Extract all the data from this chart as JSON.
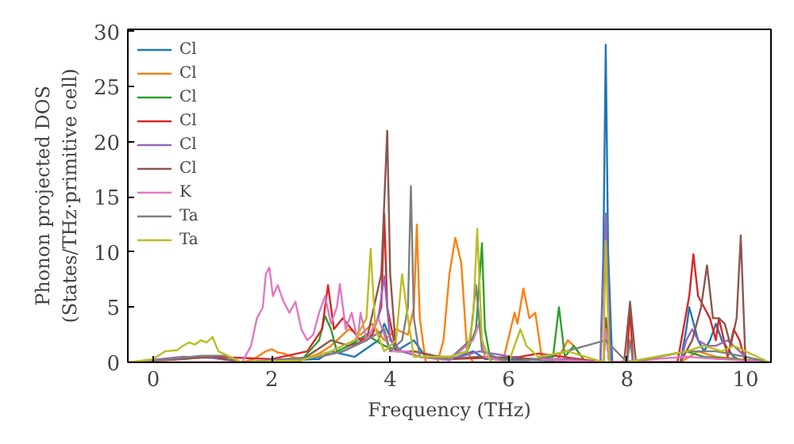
{
  "chart_data": {
    "type": "line",
    "xlabel": "Frequency (THz)",
    "ylabel": "Phonon projected DOS\n(States/THz·primitive cell)",
    "xlim": [
      -0.43,
      10.43
    ],
    "ylim": [
      0,
      30.2
    ],
    "xticks": [
      0,
      2,
      4,
      6,
      8,
      10
    ],
    "yticks": [
      0,
      5,
      10,
      15,
      20,
      25,
      30
    ],
    "grid": false,
    "legend": "top left",
    "marker": "none",
    "line_style": "solid",
    "series": [
      {
        "name": "Cl",
        "color": "#1f77b4",
        "x": [
          1.5,
          2.8,
          3.0,
          3.4,
          3.8,
          3.9,
          4.1,
          4.4,
          4.6,
          5.0,
          5.4,
          5.6,
          6.5,
          7.55,
          7.6,
          7.64,
          7.68,
          7.75,
          8.0,
          8.9,
          9.0,
          9.05,
          9.2,
          9.3,
          9.4,
          9.5,
          9.6,
          9.8,
          10.0,
          10.4
        ],
        "values": [
          0,
          0.3,
          1,
          0.5,
          2,
          3.5,
          1,
          2,
          0.5,
          0.2,
          1,
          0.3,
          0.2,
          0,
          10,
          28.8,
          10,
          0,
          0,
          0,
          3,
          5,
          2,
          1,
          2,
          3.5,
          2,
          0.5,
          0,
          0
        ]
      },
      {
        "name": "Cl",
        "color": "#ff7f0e",
        "x": [
          -0.4,
          1.5,
          1.7,
          1.9,
          2.0,
          2.1,
          2.2,
          2.5,
          2.8,
          3.0,
          3.3,
          3.5,
          3.7,
          3.9,
          4.1,
          4.3,
          4.4,
          4.45,
          4.5,
          4.6,
          4.8,
          4.9,
          5.0,
          5.1,
          5.2,
          5.3,
          5.4,
          5.9,
          6.1,
          6.15,
          6.25,
          6.35,
          6.45,
          6.55,
          6.6,
          6.8,
          7.0,
          7.1,
          7.3,
          8.9,
          9.2,
          9.5,
          10.4
        ],
        "values": [
          0,
          0,
          0.3,
          1.0,
          1.2,
          0.9,
          0.8,
          0.2,
          0.8,
          1.5,
          3,
          2.5,
          3.5,
          2,
          3,
          2.5,
          5,
          12.5,
          4,
          0,
          0,
          2,
          8,
          11.3,
          9,
          1,
          0,
          0,
          4.5,
          3.5,
          6.7,
          4,
          4.5,
          0.8,
          0,
          0,
          2,
          1.5,
          0,
          0,
          1,
          0.5,
          0
        ]
      },
      {
        "name": "Cl",
        "color": "#2ca02c",
        "x": [
          1.5,
          2.5,
          2.8,
          2.9,
          3.0,
          3.1,
          3.3,
          3.6,
          3.9,
          4.2,
          4.5,
          5.0,
          5.3,
          5.45,
          5.55,
          5.6,
          5.7,
          6.0,
          6.5,
          6.75,
          6.85,
          6.95,
          7.1,
          7.3,
          7.6,
          7.64,
          7.7,
          8.0,
          9.0,
          9.3,
          10.4
        ],
        "values": [
          0,
          0.2,
          2,
          4.2,
          3,
          1,
          1.5,
          2.5,
          1.5,
          1,
          0.5,
          0.5,
          1,
          3,
          10.8,
          3,
          0,
          0,
          0.3,
          0.5,
          5,
          0.5,
          1.5,
          0,
          0,
          3,
          0,
          0,
          1,
          0.5,
          0
        ]
      },
      {
        "name": "Cl",
        "color": "#d62728",
        "x": [
          -0.4,
          1.0,
          2.0,
          2.6,
          2.85,
          2.95,
          3.05,
          3.2,
          3.5,
          3.7,
          3.85,
          3.9,
          3.95,
          4.1,
          4.4,
          5.0,
          6.2,
          6.5,
          7.6,
          7.64,
          7.7,
          8.0,
          8.05,
          8.1,
          8.85,
          8.95,
          9.05,
          9.12,
          9.2,
          9.3,
          9.4,
          9.5,
          9.55,
          9.7,
          9.8,
          9.9,
          10.0,
          10.4
        ],
        "values": [
          0,
          0.5,
          0.3,
          1,
          3,
          7,
          3,
          4,
          2,
          2.5,
          5,
          13.5,
          5,
          1,
          1,
          0.3,
          0.5,
          0.8,
          0,
          4,
          0,
          0,
          5,
          0,
          0,
          3,
          6,
          9.8,
          6,
          5,
          4,
          2,
          4,
          0.5,
          3,
          2,
          0,
          0
        ]
      },
      {
        "name": "Cl",
        "color": "#9467bd",
        "x": [
          -0.4,
          0.5,
          1.0,
          1.5,
          2.8,
          3.2,
          3.6,
          3.8,
          3.9,
          4.0,
          4.2,
          4.5,
          5.0,
          5.5,
          6.3,
          7.0,
          7.55,
          7.64,
          7.72,
          8.0,
          8.9,
          9.0,
          9.1,
          9.2,
          9.35,
          9.5,
          9.7,
          10.0,
          10.4
        ],
        "values": [
          0,
          0.5,
          0.4,
          0,
          0.5,
          1,
          2,
          4,
          7.8,
          2,
          1,
          0.5,
          0.2,
          1,
          0.3,
          0.3,
          0,
          13.5,
          0,
          0,
          0,
          2,
          3,
          2,
          1.5,
          1.5,
          2,
          0.5,
          0
        ]
      },
      {
        "name": "Cl",
        "color": "#8c564b",
        "x": [
          -0.4,
          0.5,
          1.0,
          1.5,
          2.5,
          3.0,
          3.3,
          3.6,
          3.85,
          3.95,
          4.0,
          4.1,
          4.4,
          5.0,
          5.5,
          6.5,
          7.6,
          7.64,
          7.7,
          7.95,
          8.05,
          8.15,
          8.9,
          9.0,
          9.1,
          9.25,
          9.35,
          9.45,
          9.55,
          9.65,
          9.75,
          9.85,
          9.92,
          10.0,
          10.4
        ],
        "values": [
          0,
          0.3,
          0.5,
          0,
          0.2,
          2,
          1.5,
          2,
          8,
          21,
          8,
          1,
          1,
          0.3,
          0.5,
          0.3,
          0,
          4,
          0,
          0,
          5.5,
          0,
          0,
          1,
          2,
          5,
          8.8,
          4,
          4,
          3.5,
          1.5,
          4,
          11.5,
          0,
          0
        ]
      },
      {
        "name": "K",
        "color": "#e377c2",
        "x": [
          -0.4,
          1.5,
          1.65,
          1.75,
          1.85,
          1.9,
          1.96,
          2.02,
          2.1,
          2.2,
          2.3,
          2.4,
          2.5,
          2.6,
          2.7,
          2.8,
          2.9,
          3.0,
          3.1,
          3.15,
          3.25,
          3.35,
          3.45,
          3.5,
          3.6,
          3.7,
          3.8,
          4.0,
          4.3,
          4.5,
          5.0,
          5.4,
          5.5,
          5.6,
          6.0,
          6.5,
          7.6,
          7.64,
          7.7,
          9.0,
          10.4
        ],
        "values": [
          0,
          0,
          1.5,
          4,
          5,
          8,
          8.6,
          6,
          7,
          5.5,
          4.5,
          5.5,
          3,
          2,
          2.5,
          4.5,
          6,
          3.5,
          5,
          7.1,
          3,
          4.5,
          2,
          4.5,
          2,
          3,
          4,
          1,
          1,
          0.5,
          0.2,
          2,
          3.5,
          0.5,
          0,
          0.3,
          0,
          3,
          0,
          0.5,
          0
        ]
      },
      {
        "name": "Ta",
        "color": "#7f7f7f",
        "x": [
          -0.4,
          0.3,
          0.8,
          1.2,
          1.5,
          2.8,
          3.2,
          3.6,
          3.9,
          4.0,
          4.2,
          4.3,
          4.35,
          4.4,
          4.5,
          5.0,
          5.35,
          5.45,
          5.55,
          6.0,
          6.5,
          7.64,
          8.0,
          8.05,
          8.1,
          9.0,
          9.5,
          10.0,
          10.4
        ],
        "values": [
          0,
          0.3,
          0.6,
          0.6,
          0,
          0.5,
          1,
          2,
          3,
          1,
          2,
          5,
          16,
          4,
          0.5,
          0.3,
          2,
          7,
          1,
          0,
          0.3,
          2,
          0,
          2,
          0,
          1,
          1,
          0.5,
          0
        ]
      },
      {
        "name": "Ta",
        "color": "#bcbd22",
        "x": [
          -0.4,
          0,
          0.2,
          0.4,
          0.5,
          0.6,
          0.7,
          0.8,
          0.9,
          1.0,
          1.1,
          1.3,
          1.5,
          2.5,
          3.0,
          3.4,
          3.6,
          3.67,
          3.75,
          3.9,
          4.1,
          4.2,
          4.3,
          4.4,
          4.6,
          5.0,
          5.3,
          5.4,
          5.47,
          5.55,
          5.7,
          6.0,
          6.2,
          6.3,
          6.5,
          7.0,
          7.6,
          7.64,
          7.7,
          8.0,
          9.0,
          9.3,
          9.6,
          9.8,
          10.4
        ],
        "values": [
          0,
          0.3,
          1,
          1.1,
          1.5,
          1.8,
          1.6,
          2,
          1.8,
          2.3,
          1,
          0.5,
          0,
          0.2,
          1,
          2,
          4,
          10.3,
          3,
          1,
          2,
          8,
          4,
          0.5,
          0.5,
          0.5,
          1,
          4,
          12.1,
          2,
          0,
          0,
          3,
          1.5,
          0.5,
          1,
          0,
          11,
          0,
          0,
          1,
          1.5,
          1,
          1.5,
          0
        ]
      }
    ]
  }
}
